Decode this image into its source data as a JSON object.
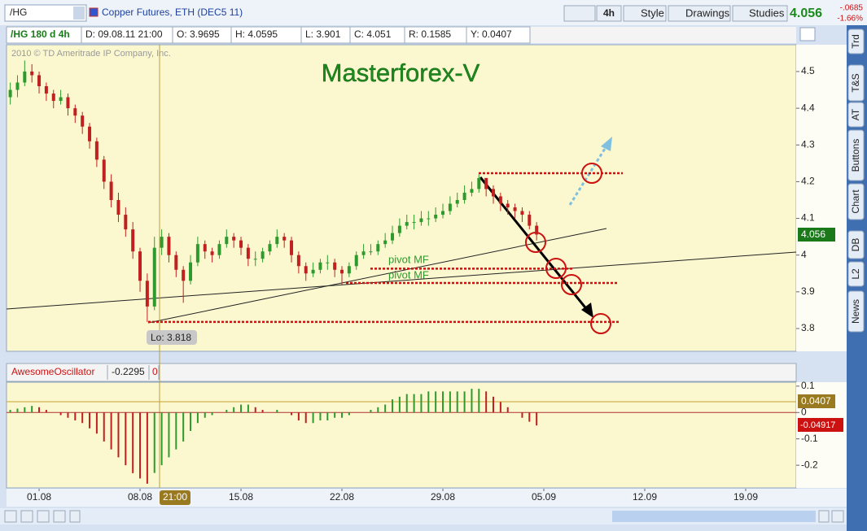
{
  "toolbar": {
    "symbol": "/HG",
    "description": "Copper Futures, ETH (DEC5 11)",
    "buttons": [
      "4h",
      "Style",
      "Drawings",
      "Studies"
    ],
    "last": "4.056",
    "change": "-.0685",
    "change_pct": "-1.66%"
  },
  "info_bar": [
    "/HG 180 d 4h",
    "D: 09.08.11 21:00",
    "O: 3.9695",
    "H: 4.0595",
    "L: 3.901",
    "C: 4.051",
    "R: 0.1585",
    "Y: 0.0407"
  ],
  "side_tabs": [
    "Trd",
    "T&S",
    "AT",
    "Buttons",
    "Chart",
    "DB",
    "L2",
    "News"
  ],
  "crosshair_time": "21:00",
  "chart_data": [
    {
      "type": "candlestick",
      "title": "Masterforex-V",
      "copyright": "2010 © TD Ameritrade IP Company, Inc.",
      "x": [
        -1,
        -0.5,
        0,
        0.5,
        1,
        1.5,
        2,
        2.5,
        3,
        3.5,
        4,
        4.5,
        5,
        5.5,
        6,
        6.5,
        7,
        7.5,
        8,
        8.5,
        9,
        9.5,
        10,
        10.5,
        11,
        11.5,
        12,
        12.5,
        13,
        13.5,
        14,
        14.5,
        15,
        15.5,
        16,
        16.5,
        17,
        17.5,
        18,
        18.5,
        19,
        19.5,
        20,
        20.5,
        21,
        21.5,
        22,
        22.5,
        23,
        23.5,
        24,
        24.5,
        25,
        25.5,
        26,
        26.5,
        27,
        27.5,
        28,
        28.5,
        29,
        29.5,
        30,
        30.5,
        31,
        31.5,
        32,
        32.5,
        33,
        33.5,
        34,
        34.5,
        35,
        35.5
      ],
      "open": [
        4.43,
        4.45,
        4.47,
        4.5,
        4.49,
        4.46,
        4.44,
        4.42,
        4.43,
        4.4,
        4.38,
        4.35,
        4.31,
        4.26,
        4.2,
        4.15,
        4.11,
        4.07,
        4.01,
        3.93,
        3.86,
        4.02,
        4.05,
        4.0,
        3.96,
        3.93,
        3.98,
        4.03,
        4.01,
        4.0,
        4.03,
        4.05,
        4.04,
        4.02,
        3.99,
        3.99,
        4.01,
        4.03,
        4.05,
        4.04,
        4.0,
        3.97,
        3.95,
        3.96,
        3.98,
        3.98,
        3.96,
        3.95,
        3.97,
        4.0,
        4.01,
        4.01,
        4.03,
        4.04,
        4.06,
        4.08,
        4.09,
        4.09,
        4.1,
        4.1,
        4.11,
        4.12,
        4.14,
        4.15,
        4.17,
        4.18,
        4.21,
        4.18,
        4.16,
        4.14,
        4.13,
        4.12,
        4.11,
        4.08
      ],
      "high": [
        4.47,
        4.49,
        4.53,
        4.52,
        4.5,
        4.47,
        4.45,
        4.45,
        4.44,
        4.41,
        4.39,
        4.36,
        4.32,
        4.27,
        4.22,
        4.17,
        4.13,
        4.09,
        4.02,
        3.95,
        4.05,
        4.07,
        4.06,
        4.01,
        3.97,
        4.0,
        4.05,
        4.04,
        4.02,
        4.04,
        4.07,
        4.06,
        4.05,
        4.03,
        4.01,
        4.02,
        4.04,
        4.07,
        4.06,
        4.05,
        4.01,
        3.98,
        3.98,
        3.99,
        4.0,
        3.99,
        3.97,
        3.98,
        4.01,
        4.03,
        4.03,
        4.04,
        4.06,
        4.08,
        4.1,
        4.11,
        4.11,
        4.12,
        4.12,
        4.13,
        4.14,
        4.16,
        4.17,
        4.19,
        4.2,
        4.22,
        4.21,
        4.19,
        4.17,
        4.15,
        4.14,
        4.13,
        4.12,
        4.09
      ],
      "low": [
        4.41,
        4.43,
        4.46,
        4.47,
        4.44,
        4.42,
        4.4,
        4.41,
        4.38,
        4.36,
        4.33,
        4.29,
        4.24,
        4.18,
        4.13,
        4.09,
        4.05,
        3.99,
        3.9,
        3.818,
        3.85,
        4.0,
        3.98,
        3.94,
        3.87,
        3.92,
        3.97,
        3.99,
        3.98,
        3.99,
        4.02,
        4.02,
        4.0,
        3.97,
        3.97,
        3.98,
        4.0,
        4.02,
        4.02,
        3.98,
        3.95,
        3.93,
        3.94,
        3.95,
        3.96,
        3.94,
        3.92,
        3.94,
        3.96,
        3.99,
        4.0,
        4.0,
        4.02,
        4.03,
        4.05,
        4.07,
        4.07,
        4.08,
        4.08,
        4.09,
        4.1,
        4.11,
        4.13,
        4.14,
        4.16,
        4.17,
        4.16,
        4.14,
        4.12,
        4.11,
        4.1,
        4.09,
        4.07,
        4.04
      ],
      "close": [
        4.45,
        4.47,
        4.5,
        4.49,
        4.46,
        4.44,
        4.42,
        4.43,
        4.4,
        4.38,
        4.35,
        4.31,
        4.26,
        4.2,
        4.15,
        4.11,
        4.07,
        4.01,
        3.93,
        3.86,
        4.02,
        4.05,
        4.0,
        3.96,
        3.93,
        3.98,
        4.03,
        4.01,
        4.0,
        4.03,
        4.05,
        4.04,
        4.02,
        3.99,
        3.99,
        4.01,
        4.03,
        4.05,
        4.04,
        4.0,
        3.97,
        3.95,
        3.96,
        3.98,
        3.98,
        3.96,
        3.95,
        3.97,
        4.0,
        4.01,
        4.01,
        4.03,
        4.04,
        4.06,
        4.08,
        4.09,
        4.09,
        4.1,
        4.1,
        4.11,
        4.12,
        4.14,
        4.15,
        4.17,
        4.18,
        4.21,
        4.18,
        4.16,
        4.14,
        4.13,
        4.12,
        4.11,
        4.08,
        4.056
      ],
      "up_color": "#2e9a2e",
      "down_color": "#c02020",
      "xlim": [
        -1.26,
        53.5
      ],
      "ylim": [
        3.738,
        4.573
      ],
      "yticks": [
        3.8,
        3.9,
        4,
        4.1,
        4.2,
        4.3,
        4.4,
        4.5
      ],
      "levels": [
        4.223,
        3.963,
        3.924,
        3.818
      ],
      "level_color": "#cc1111",
      "annotations": [
        "pivot MF",
        "pivot MF",
        "Lo: 3.818"
      ],
      "last_price": 4.056
    },
    {
      "type": "bar",
      "name": "AwesomeOscillator",
      "header_values": [
        -0.2295,
        0
      ],
      "x": [
        -1,
        -0.5,
        0,
        0.5,
        1,
        1.5,
        2,
        2.5,
        3,
        3.5,
        4,
        4.5,
        5,
        5.5,
        6,
        6.5,
        7,
        7.5,
        8,
        8.5,
        9,
        9.5,
        10,
        10.5,
        11,
        11.5,
        12,
        12.5,
        13,
        13.5,
        14,
        14.5,
        15,
        15.5,
        16,
        16.5,
        17,
        17.5,
        18,
        18.5,
        19,
        19.5,
        20,
        20.5,
        21,
        21.5,
        22,
        22.5,
        23,
        23.5,
        24,
        24.5,
        25,
        25.5,
        26,
        26.5,
        27,
        27.5,
        28,
        28.5,
        29,
        29.5,
        30,
        30.5,
        31,
        31.5,
        32,
        32.5,
        33,
        33.5,
        34,
        34.5,
        35,
        35.5
      ],
      "values": [
        0.01,
        0.015,
        0.02,
        0.025,
        0.02,
        0.01,
        0,
        -0.01,
        -0.02,
        -0.03,
        -0.04,
        -0.06,
        -0.08,
        -0.11,
        -0.14,
        -0.17,
        -0.2,
        -0.23,
        -0.25,
        -0.27,
        -0.2295,
        -0.2,
        -0.17,
        -0.14,
        -0.11,
        -0.07,
        -0.04,
        -0.02,
        -0.01,
        0,
        0.01,
        0.02,
        0.03,
        0.03,
        0.02,
        0.01,
        0,
        0.01,
        0,
        -0.01,
        -0.03,
        -0.04,
        -0.04,
        -0.03,
        -0.03,
        -0.02,
        -0.02,
        -0.01,
        0,
        0,
        0.01,
        0.02,
        0.03,
        0.05,
        0.06,
        0.07,
        0.07,
        0.07,
        0.08,
        0.08,
        0.08,
        0.08,
        0.08,
        0.08,
        0.09,
        0.09,
        0.08,
        0.06,
        0.04,
        0.02,
        0,
        -0.02,
        -0.035,
        -0.04917
      ],
      "up_color": "#2e9a2e",
      "down_color": "#c02020",
      "xlim": [
        -1.26,
        53.5
      ],
      "ylim": [
        -0.286,
        0.115
      ],
      "yticks": [
        0.1,
        0,
        -0.1,
        -0.2
      ],
      "xticks": [
        {
          "value": 1,
          "label": "01.08"
        },
        {
          "value": 8,
          "label": "08.08"
        },
        {
          "value": 15,
          "label": "15.08"
        },
        {
          "value": 22,
          "label": "22.08"
        },
        {
          "value": 29,
          "label": "29.08"
        },
        {
          "value": 36,
          "label": "05.09"
        },
        {
          "value": 43,
          "label": "12.09"
        },
        {
          "value": 50,
          "label": "19.09"
        }
      ],
      "cursor_value": 0.0407,
      "last_value": -0.04917
    }
  ]
}
